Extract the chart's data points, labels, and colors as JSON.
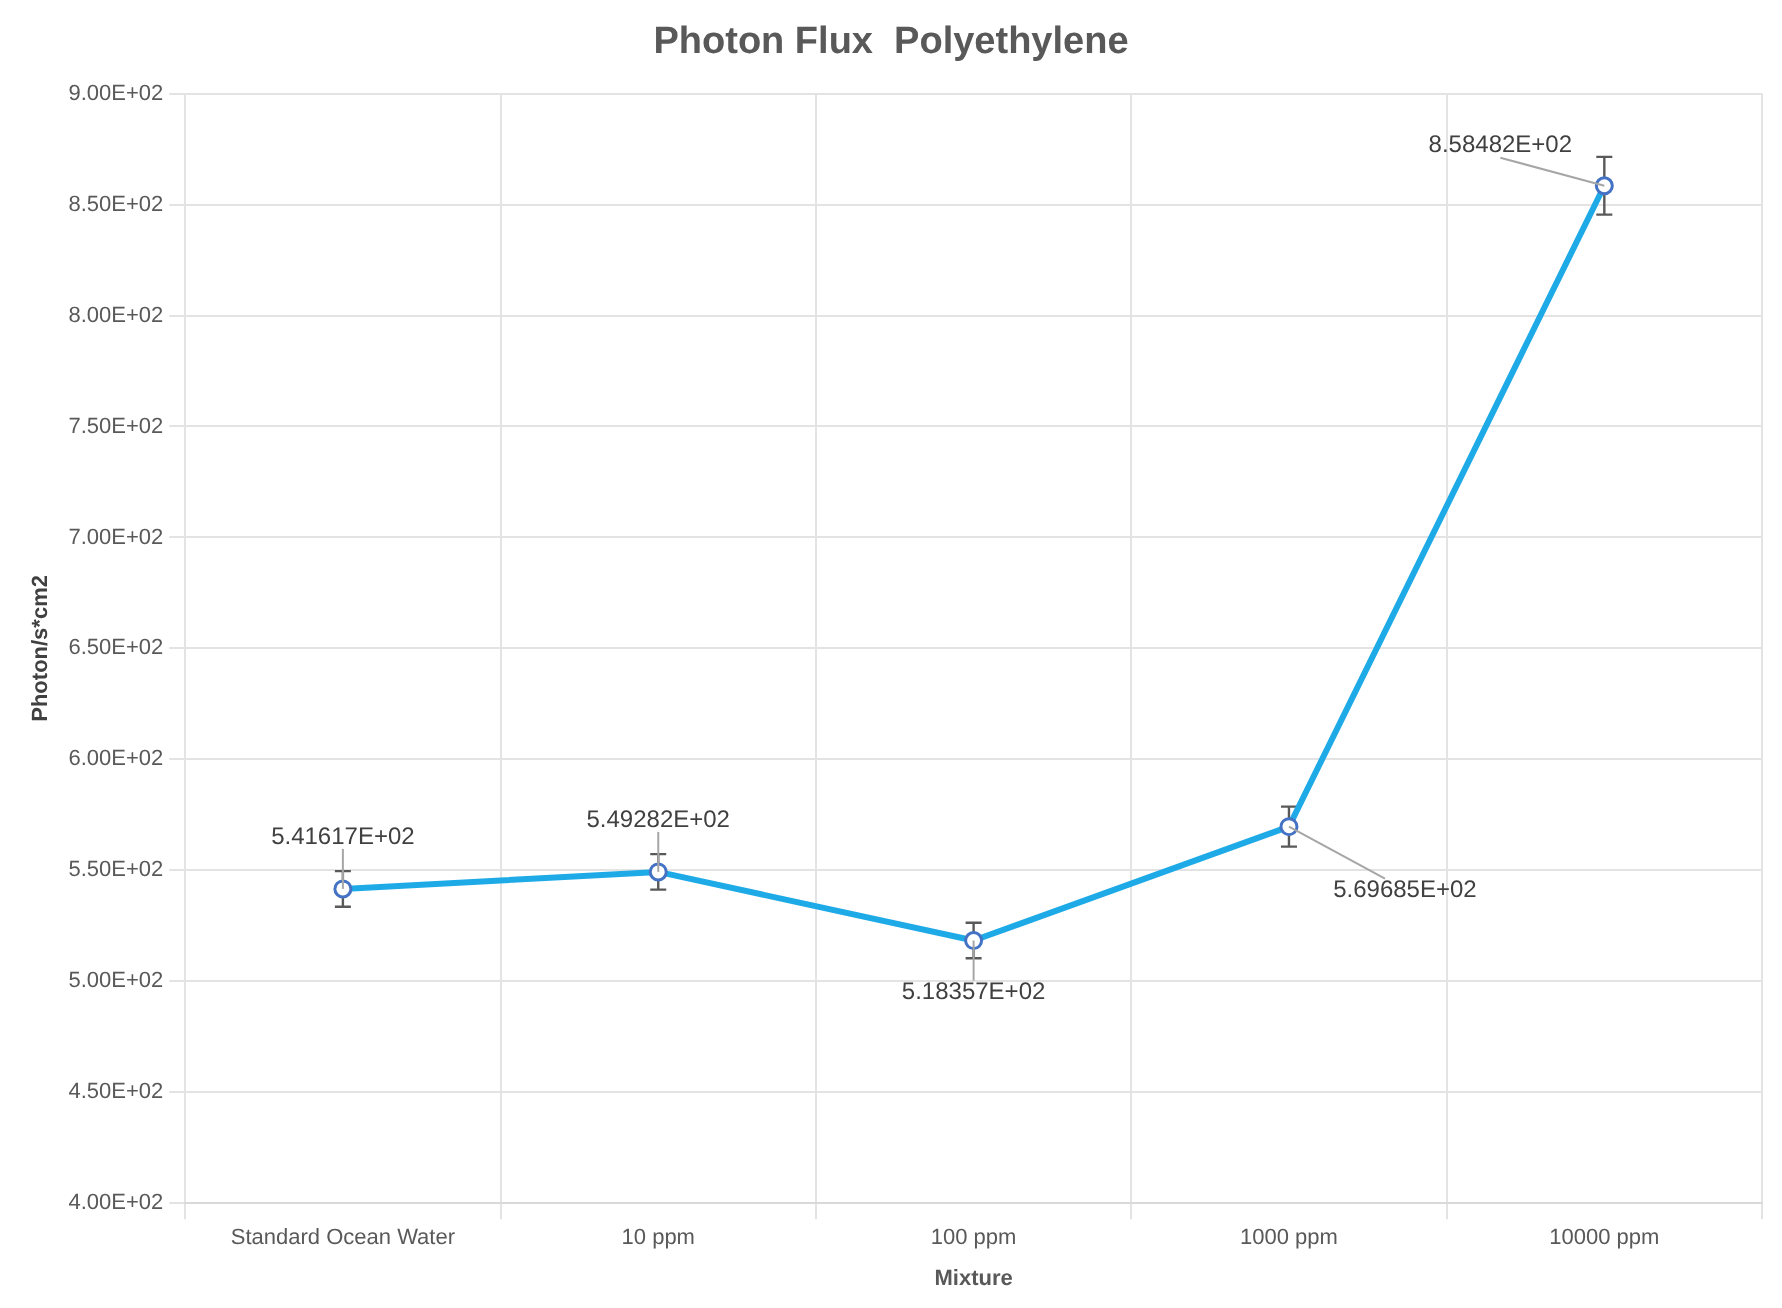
{
  "chart_data": {
    "type": "line",
    "title": "Photon Flux  Polyethylene",
    "xlabel": "Mixture",
    "ylabel": "Photon/s*cm2",
    "categories": [
      "Standard Ocean Water",
      "10 ppm",
      "100 ppm",
      "1000 ppm",
      "10000 ppm"
    ],
    "series": [
      {
        "color": "#1eaae6",
        "values": [
          541.617,
          549.282,
          518.357,
          569.685,
          858.482
        ],
        "errors": [
          8,
          8,
          8,
          9,
          13
        ],
        "value_labels": [
          "5.41617E+02",
          "5.49282E+02",
          "5.18357E+02",
          "5.69685E+02",
          "8.58482E+02"
        ]
      }
    ],
    "ylim": [
      400,
      900
    ],
    "yticks": [
      {
        "value": 400,
        "label": "4.00E+02"
      },
      {
        "value": 450,
        "label": "4.50E+02"
      },
      {
        "value": 500,
        "label": "5.00E+02"
      },
      {
        "value": 550,
        "label": "5.50E+02"
      },
      {
        "value": 600,
        "label": "6.00E+02"
      },
      {
        "value": 650,
        "label": "6.50E+02"
      },
      {
        "value": 700,
        "label": "7.00E+02"
      },
      {
        "value": 750,
        "label": "7.50E+02"
      },
      {
        "value": 800,
        "label": "8.00E+02"
      },
      {
        "value": 850,
        "label": "8.50E+02"
      },
      {
        "value": 900,
        "label": "9.00E+02"
      }
    ],
    "grid": true,
    "legend": false,
    "marker": "circle",
    "line_style": "solid"
  }
}
